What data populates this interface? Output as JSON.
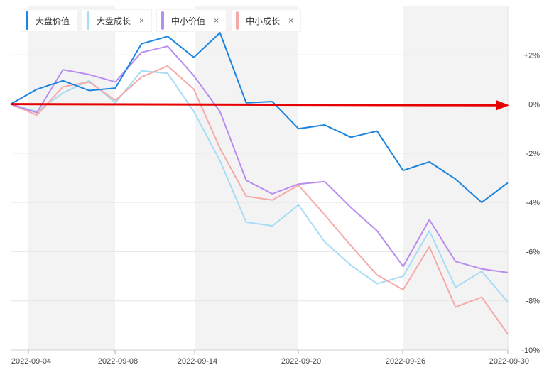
{
  "legend": [
    {
      "label": "大盘价值",
      "color": "#1a84e0",
      "closable": false
    },
    {
      "label": "大盘成长",
      "color": "#a6dcf5",
      "closable": true
    },
    {
      "label": "中小价值",
      "color": "#b98cef",
      "closable": true
    },
    {
      "label": "中小成长",
      "color": "#f5aaaa",
      "closable": true
    }
  ],
  "close_glyph": "×",
  "chart_data": {
    "type": "line",
    "x": [
      "2022-09-02",
      "2022-09-05",
      "2022-09-06",
      "2022-09-07",
      "2022-09-08",
      "2022-09-09",
      "2022-09-13",
      "2022-09-14",
      "2022-09-15",
      "2022-09-16",
      "2022-09-19",
      "2022-09-20",
      "2022-09-21",
      "2022-09-22",
      "2022-09-23",
      "2022-09-26",
      "2022-09-27",
      "2022-09-28",
      "2022-09-29",
      "2022-09-30"
    ],
    "x_tick_labels": [
      "2022-09-04",
      "2022-09-08",
      "2022-09-14",
      "2022-09-20",
      "2022-09-26",
      "2022-09-30"
    ],
    "y_tick_labels": [
      "+2%",
      "0%",
      "-2%",
      "-4%",
      "-6%",
      "-8%",
      "-10%"
    ],
    "y_ticks": [
      2,
      0,
      -2,
      -4,
      -6,
      -8,
      -10
    ],
    "ylim": [
      -10,
      4
    ],
    "series": [
      {
        "name": "大盘价值",
        "color": "#1a84e0",
        "values": [
          0.0,
          0.6,
          0.95,
          0.55,
          0.65,
          2.45,
          2.75,
          1.9,
          2.9,
          0.05,
          0.1,
          -1.0,
          -0.85,
          -1.35,
          -1.1,
          -2.7,
          -2.35,
          -3.05,
          -4.0,
          -3.2
        ]
      },
      {
        "name": "大盘成长",
        "color": "#a6dcf5",
        "values": [
          0.0,
          -0.3,
          0.45,
          0.95,
          0.05,
          1.35,
          1.25,
          -0.3,
          -2.3,
          -4.8,
          -4.95,
          -4.1,
          -5.6,
          -6.55,
          -7.3,
          -7.0,
          -5.15,
          -7.45,
          -6.8,
          -8.05
        ]
      },
      {
        "name": "中小价值",
        "color": "#b98cef",
        "values": [
          0.0,
          -0.35,
          1.4,
          1.2,
          0.9,
          2.1,
          2.35,
          1.15,
          -0.3,
          -3.1,
          -3.65,
          -3.25,
          -3.15,
          -4.2,
          -5.15,
          -6.6,
          -4.7,
          -6.4,
          -6.7,
          -6.85
        ]
      },
      {
        "name": "中小成长",
        "color": "#f5aaaa",
        "values": [
          0.0,
          -0.45,
          0.7,
          0.9,
          0.15,
          1.1,
          1.55,
          0.6,
          -1.8,
          -3.75,
          -3.9,
          -3.3,
          -4.5,
          -5.75,
          -6.95,
          -7.55,
          -5.8,
          -8.25,
          -7.85,
          -9.35
        ]
      }
    ],
    "annotation": {
      "type": "arrow",
      "color": "#e60000",
      "y_start": 0.0,
      "y_end": -0.05
    },
    "grid": true,
    "legend_position": "top-left"
  }
}
